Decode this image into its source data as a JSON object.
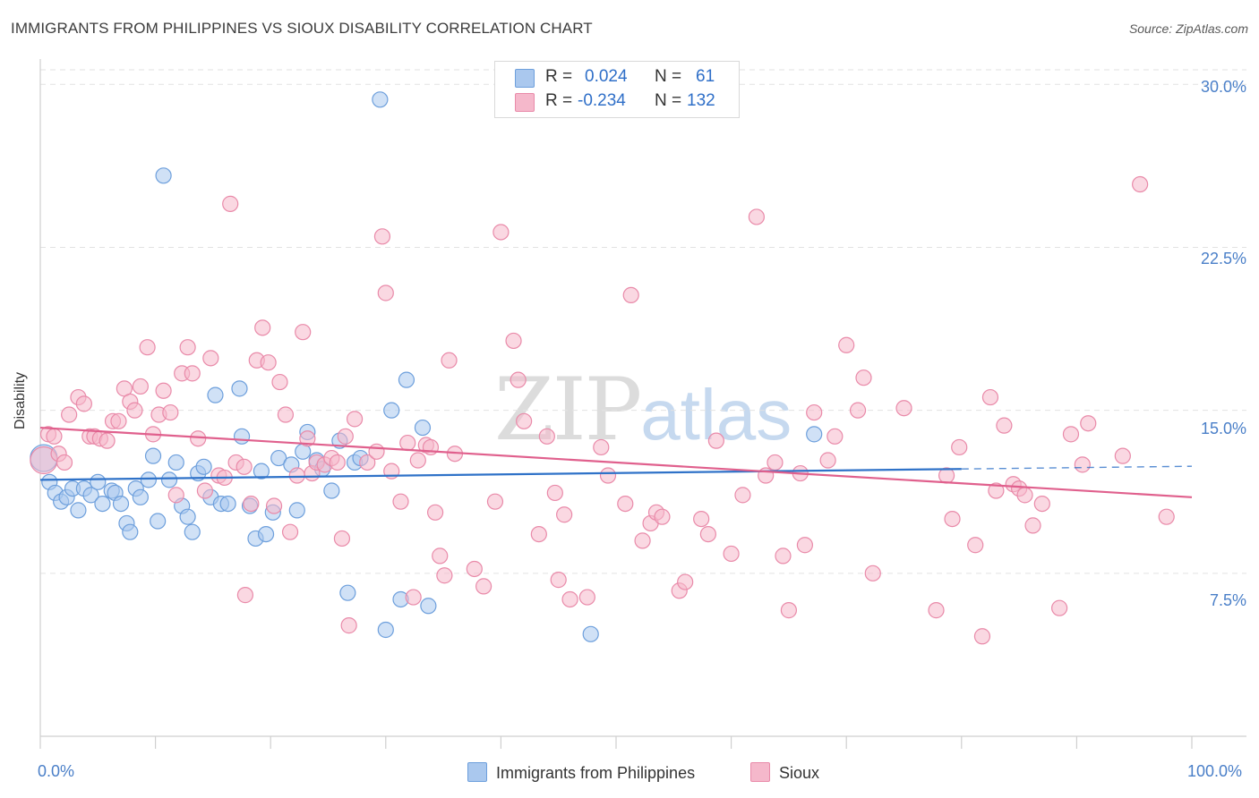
{
  "header": {
    "title": "IMMIGRANTS FROM PHILIPPINES VS SIOUX DISABILITY CORRELATION CHART",
    "source": "Source: ZipAtlas.com"
  },
  "legend": {
    "rows": [
      {
        "r_label": "R =",
        "r_value": "0.024",
        "n_label": "N =",
        "n_value": "61",
        "color": "#aac8ee"
      },
      {
        "r_label": "R =",
        "r_value": "-0.234",
        "n_label": "N =",
        "n_value": "132",
        "color": "#f5b8cb"
      }
    ]
  },
  "bottom_legend": [
    "Immigrants from Philippines",
    "Sioux"
  ],
  "watermark": {
    "zip": "ZIP",
    "atlas": "atlas"
  },
  "colors": {
    "blue_fill": "#aac8ee",
    "blue_stroke": "#6d9fdc",
    "blue_line": "#2f72c8",
    "pink_fill": "#f5b8cb",
    "pink_stroke": "#e98aa9",
    "pink_line": "#e0608d",
    "grid": "#e2e2e2",
    "tick_text": "#4a7fc8"
  },
  "chart_data": {
    "type": "scatter",
    "title": "IMMIGRANTS FROM PHILIPPINES VS SIOUX DISABILITY CORRELATION CHART",
    "xlabel": "",
    "ylabel": "Disability",
    "xlim": [
      0,
      100
    ],
    "ylim": [
      0,
      31
    ],
    "x_tick_labels": [
      "0.0%",
      "100.0%"
    ],
    "y_ticks": [
      7.5,
      15.0,
      22.5,
      30.0
    ],
    "y_tick_labels": [
      "7.5%",
      "15.0%",
      "22.5%",
      "30.0%"
    ],
    "grid": "horizontal dashed",
    "legend_position": "top-center",
    "series": [
      {
        "name": "Immigrants from Philippines",
        "r": 0.024,
        "n": 61,
        "trend": {
          "x": [
            0,
            80
          ],
          "y": [
            11.8,
            12.3
          ],
          "dashed_extension_to_x": 100
        },
        "points": [
          [
            0.3,
            12.8
          ],
          [
            0.8,
            11.7
          ],
          [
            1.3,
            11.2
          ],
          [
            1.8,
            10.8
          ],
          [
            2.3,
            11.0
          ],
          [
            2.8,
            11.4
          ],
          [
            3.3,
            10.4
          ],
          [
            3.8,
            11.4
          ],
          [
            4.4,
            11.1
          ],
          [
            5.0,
            11.7
          ],
          [
            5.4,
            10.7
          ],
          [
            6.2,
            11.3
          ],
          [
            6.5,
            11.2
          ],
          [
            7.0,
            10.7
          ],
          [
            7.5,
            9.8
          ],
          [
            7.8,
            9.4
          ],
          [
            8.3,
            11.4
          ],
          [
            8.7,
            11.0
          ],
          [
            9.4,
            11.8
          ],
          [
            9.8,
            12.9
          ],
          [
            10.2,
            9.9
          ],
          [
            10.7,
            25.8
          ],
          [
            11.2,
            11.8
          ],
          [
            11.8,
            12.6
          ],
          [
            12.3,
            10.6
          ],
          [
            12.8,
            10.1
          ],
          [
            13.2,
            9.4
          ],
          [
            13.7,
            12.1
          ],
          [
            14.2,
            12.4
          ],
          [
            14.8,
            11.0
          ],
          [
            15.2,
            15.7
          ],
          [
            15.7,
            10.7
          ],
          [
            16.3,
            10.7
          ],
          [
            17.3,
            16.0
          ],
          [
            17.5,
            13.8
          ],
          [
            18.2,
            10.6
          ],
          [
            18.7,
            9.1
          ],
          [
            19.2,
            12.2
          ],
          [
            19.6,
            9.3
          ],
          [
            20.2,
            10.3
          ],
          [
            20.7,
            12.8
          ],
          [
            21.8,
            12.5
          ],
          [
            22.3,
            10.4
          ],
          [
            22.8,
            13.1
          ],
          [
            23.2,
            14.0
          ],
          [
            24.0,
            12.7
          ],
          [
            24.5,
            12.3
          ],
          [
            25.3,
            11.3
          ],
          [
            26.0,
            13.6
          ],
          [
            26.7,
            6.6
          ],
          [
            27.3,
            12.6
          ],
          [
            27.8,
            12.8
          ],
          [
            29.5,
            29.3
          ],
          [
            30.0,
            4.9
          ],
          [
            30.5,
            15.0
          ],
          [
            31.3,
            6.3
          ],
          [
            31.8,
            16.4
          ],
          [
            33.2,
            14.2
          ],
          [
            33.7,
            6.0
          ],
          [
            47.8,
            4.7
          ],
          [
            67.2,
            13.9
          ]
        ]
      },
      {
        "name": "Sioux",
        "r": -0.234,
        "n": 132,
        "trend": {
          "x": [
            0,
            100
          ],
          "y": [
            14.2,
            11.0
          ]
        },
        "points": [
          [
            0.3,
            12.7
          ],
          [
            0.7,
            13.9
          ],
          [
            1.2,
            13.8
          ],
          [
            1.6,
            13.0
          ],
          [
            2.1,
            12.6
          ],
          [
            2.5,
            14.8
          ],
          [
            3.3,
            15.6
          ],
          [
            3.8,
            15.3
          ],
          [
            4.3,
            13.8
          ],
          [
            4.7,
            13.8
          ],
          [
            5.2,
            13.7
          ],
          [
            5.8,
            13.6
          ],
          [
            6.3,
            14.5
          ],
          [
            6.8,
            14.5
          ],
          [
            7.3,
            16.0
          ],
          [
            7.8,
            15.4
          ],
          [
            8.2,
            15.0
          ],
          [
            8.7,
            16.1
          ],
          [
            9.3,
            17.9
          ],
          [
            9.8,
            13.9
          ],
          [
            10.3,
            14.8
          ],
          [
            10.7,
            15.9
          ],
          [
            11.3,
            14.9
          ],
          [
            11.8,
            11.1
          ],
          [
            12.3,
            16.7
          ],
          [
            12.8,
            17.9
          ],
          [
            13.2,
            16.7
          ],
          [
            13.7,
            13.7
          ],
          [
            14.3,
            11.3
          ],
          [
            14.8,
            17.4
          ],
          [
            15.5,
            12.0
          ],
          [
            16.0,
            11.9
          ],
          [
            16.5,
            24.5
          ],
          [
            17.0,
            12.6
          ],
          [
            17.7,
            12.4
          ],
          [
            17.8,
            6.5
          ],
          [
            18.3,
            10.7
          ],
          [
            18.8,
            17.3
          ],
          [
            19.3,
            18.8
          ],
          [
            19.8,
            17.2
          ],
          [
            20.3,
            10.6
          ],
          [
            20.8,
            16.3
          ],
          [
            21.3,
            14.8
          ],
          [
            21.7,
            9.4
          ],
          [
            22.3,
            12.0
          ],
          [
            22.8,
            18.6
          ],
          [
            23.2,
            13.7
          ],
          [
            23.6,
            12.1
          ],
          [
            24.0,
            12.6
          ],
          [
            24.7,
            12.5
          ],
          [
            25.3,
            12.8
          ],
          [
            25.8,
            12.6
          ],
          [
            26.2,
            9.1
          ],
          [
            26.5,
            13.8
          ],
          [
            26.8,
            5.1
          ],
          [
            27.3,
            14.6
          ],
          [
            28.4,
            12.6
          ],
          [
            29.2,
            13.1
          ],
          [
            29.7,
            23.0
          ],
          [
            30.0,
            20.4
          ],
          [
            30.5,
            12.2
          ],
          [
            31.3,
            10.8
          ],
          [
            31.9,
            13.5
          ],
          [
            32.4,
            6.4
          ],
          [
            32.8,
            12.7
          ],
          [
            33.5,
            13.4
          ],
          [
            33.9,
            13.3
          ],
          [
            34.3,
            10.3
          ],
          [
            34.7,
            8.3
          ],
          [
            35.1,
            7.4
          ],
          [
            35.5,
            17.3
          ],
          [
            36.0,
            13.0
          ],
          [
            37.7,
            7.7
          ],
          [
            38.5,
            6.9
          ],
          [
            39.5,
            10.8
          ],
          [
            40.0,
            23.2
          ],
          [
            41.1,
            18.2
          ],
          [
            41.5,
            16.4
          ],
          [
            42.0,
            14.5
          ],
          [
            43.3,
            9.3
          ],
          [
            44.0,
            13.8
          ],
          [
            44.7,
            11.2
          ],
          [
            45.0,
            7.2
          ],
          [
            45.5,
            10.2
          ],
          [
            46.0,
            6.3
          ],
          [
            47.5,
            6.4
          ],
          [
            48.7,
            13.3
          ],
          [
            49.3,
            12.0
          ],
          [
            50.8,
            10.7
          ],
          [
            51.3,
            20.3
          ],
          [
            52.3,
            9.0
          ],
          [
            53.0,
            9.8
          ],
          [
            53.5,
            10.3
          ],
          [
            54.0,
            10.1
          ],
          [
            55.5,
            6.7
          ],
          [
            56.0,
            7.1
          ],
          [
            57.4,
            10.0
          ],
          [
            58.0,
            9.3
          ],
          [
            58.7,
            13.6
          ],
          [
            60.0,
            8.4
          ],
          [
            61.0,
            11.1
          ],
          [
            62.2,
            23.9
          ],
          [
            63.0,
            12.0
          ],
          [
            63.8,
            12.6
          ],
          [
            64.5,
            8.3
          ],
          [
            65.0,
            5.8
          ],
          [
            66.0,
            12.1
          ],
          [
            66.4,
            8.8
          ],
          [
            67.2,
            14.9
          ],
          [
            68.4,
            12.7
          ],
          [
            69.0,
            13.8
          ],
          [
            70.0,
            18.0
          ],
          [
            71.0,
            15.0
          ],
          [
            71.5,
            16.5
          ],
          [
            72.3,
            7.5
          ],
          [
            75.0,
            15.1
          ],
          [
            77.8,
            5.8
          ],
          [
            78.7,
            12.0
          ],
          [
            79.2,
            10.0
          ],
          [
            79.8,
            13.3
          ],
          [
            81.2,
            8.8
          ],
          [
            81.8,
            4.6
          ],
          [
            82.5,
            15.6
          ],
          [
            83.0,
            11.3
          ],
          [
            83.7,
            14.3
          ],
          [
            84.5,
            11.6
          ],
          [
            85.0,
            11.4
          ],
          [
            85.5,
            11.1
          ],
          [
            86.2,
            9.7
          ],
          [
            87.0,
            10.7
          ],
          [
            88.5,
            5.9
          ],
          [
            89.5,
            13.9
          ],
          [
            90.5,
            12.5
          ],
          [
            91.0,
            14.4
          ],
          [
            94.0,
            12.9
          ],
          [
            95.5,
            25.4
          ],
          [
            97.8,
            10.1
          ]
        ]
      }
    ]
  }
}
